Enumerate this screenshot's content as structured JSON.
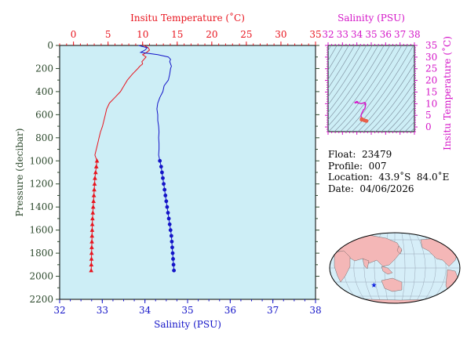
{
  "colors": {
    "temperature": "#e8141e",
    "salinity": "#1414c8",
    "ts_diagram": "#d416c8",
    "pressure_axis": "#2e4a2e",
    "plot_bg": "#cdeef6",
    "land": "#f4b7b7",
    "ocean": "#d6eef8"
  },
  "float_info": {
    "float": "Float:  23479",
    "profile": "Profile:  007",
    "location": "Location:  43.9˚S  84.0˚E",
    "date": "Date:  04/06/2026"
  },
  "chart_data": [
    {
      "type": "line",
      "title": "",
      "y_axis": {
        "label": "Pressure (decibar)",
        "range": [
          2200,
          0
        ],
        "ticks": [
          0,
          200,
          400,
          600,
          800,
          1000,
          1200,
          1400,
          1600,
          1800,
          2000,
          2200
        ]
      },
      "x_axis_top": {
        "label": "Insitu Temperature (˚C)",
        "range": [
          -2,
          35
        ],
        "ticks": [
          0,
          5,
          10,
          15,
          20,
          25,
          30,
          35
        ]
      },
      "x_axis_bottom": {
        "label": "Salinity (PSU)",
        "range": [
          32,
          38
        ],
        "ticks": [
          32,
          33,
          34,
          35,
          36,
          37,
          38
        ]
      },
      "grid": false,
      "series": [
        {
          "axis": "top",
          "marker": "triangle",
          "pressure": [
            0,
            20,
            40,
            60,
            80,
            100,
            120,
            140,
            160,
            180,
            200,
            250,
            300,
            350,
            400,
            450,
            500,
            550,
            600,
            650,
            700,
            750,
            800,
            850,
            900,
            950,
            1000,
            1050,
            1100,
            1150,
            1200,
            1250,
            1300,
            1350,
            1400,
            1450,
            1500,
            1550,
            1600,
            1650,
            1700,
            1750,
            1800,
            1850,
            1900,
            1950
          ],
          "values": [
            10.2,
            10.8,
            11.0,
            10.6,
            10.0,
            10.5,
            10.2,
            9.9,
            10.0,
            9.6,
            9.3,
            8.5,
            7.8,
            7.3,
            6.8,
            6.0,
            5.2,
            4.8,
            4.6,
            4.4,
            4.2,
            3.9,
            3.7,
            3.5,
            3.3,
            3.1,
            3.4,
            3.3,
            3.2,
            3.1,
            3.05,
            3.0,
            2.95,
            2.9,
            2.85,
            2.8,
            2.75,
            2.72,
            2.7,
            2.68,
            2.66,
            2.64,
            2.62,
            2.6,
            2.58,
            2.56
          ],
          "marker_from": 1000
        },
        {
          "axis": "bottom",
          "marker": "circle",
          "pressure": [
            0,
            20,
            40,
            60,
            80,
            100,
            120,
            140,
            160,
            180,
            200,
            250,
            300,
            350,
            400,
            450,
            500,
            550,
            600,
            650,
            700,
            750,
            800,
            850,
            900,
            950,
            1000,
            1050,
            1100,
            1150,
            1200,
            1250,
            1300,
            1350,
            1400,
            1450,
            1500,
            1550,
            1600,
            1650,
            1700,
            1750,
            1800,
            1850,
            1900,
            1950
          ],
          "values": [
            33.85,
            34.05,
            34.0,
            33.9,
            34.3,
            34.55,
            34.6,
            34.58,
            34.6,
            34.62,
            34.6,
            34.58,
            34.55,
            34.45,
            34.42,
            34.35,
            34.3,
            34.28,
            34.3,
            34.3,
            34.32,
            34.33,
            34.32,
            34.33,
            34.33,
            34.32,
            34.35,
            34.38,
            34.4,
            34.42,
            34.44,
            34.46,
            34.48,
            34.5,
            34.52,
            34.54,
            34.56,
            34.58,
            34.6,
            34.62,
            34.63,
            34.64,
            34.65,
            34.66,
            34.67,
            34.68
          ],
          "marker_from": 1000
        }
      ]
    },
    {
      "type": "scatter",
      "title": "",
      "x_axis": {
        "label": "Salinity (PSU)",
        "range": [
          32,
          38
        ],
        "ticks": [
          32,
          33,
          34,
          35,
          36,
          37,
          38
        ]
      },
      "y_axis": {
        "label": "Insitu Temperature (˚C)",
        "range": [
          -2,
          35
        ],
        "ticks": [
          0,
          5,
          10,
          15,
          20,
          25,
          30,
          35
        ]
      },
      "grid": false,
      "points": {
        "salinity": [
          33.85,
          34.05,
          34.0,
          33.9,
          34.3,
          34.55,
          34.6,
          34.58,
          34.6,
          34.62,
          34.6,
          34.58,
          34.55,
          34.45,
          34.42,
          34.35,
          34.3,
          34.28,
          34.3,
          34.3,
          34.32,
          34.33,
          34.32,
          34.33,
          34.33,
          34.32,
          34.35,
          34.38,
          34.4,
          34.42,
          34.44,
          34.46,
          34.48,
          34.5,
          34.52,
          34.54,
          34.56,
          34.58,
          34.6,
          34.62,
          34.63,
          34.64,
          34.65,
          34.66,
          34.67,
          34.68
        ],
        "temperature": [
          10.2,
          10.8,
          11.0,
          10.6,
          10.0,
          10.5,
          10.2,
          9.9,
          10.0,
          9.6,
          9.3,
          8.5,
          7.8,
          7.3,
          6.8,
          6.0,
          5.2,
          4.8,
          4.6,
          4.4,
          4.2,
          3.9,
          3.7,
          3.5,
          3.3,
          3.1,
          3.4,
          3.3,
          3.2,
          3.1,
          3.05,
          3.0,
          2.95,
          2.9,
          2.85,
          2.8,
          2.75,
          2.72,
          2.7,
          2.68,
          2.66,
          2.64,
          2.62,
          2.6,
          2.58,
          2.56
        ]
      }
    },
    {
      "type": "map",
      "title": "",
      "marker": {
        "lat": -43.9,
        "lon": 84.0,
        "symbol": "star"
      }
    }
  ]
}
